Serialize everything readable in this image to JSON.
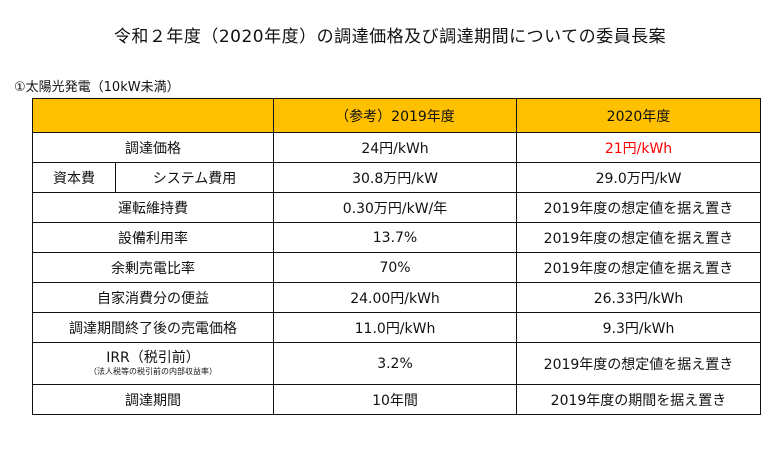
{
  "title": "令和２年度（2020年度）の調達価格及び調達期間についての委員長案",
  "subtitle": "①太陽光発電（10kW未満）",
  "table": {
    "header": {
      "blank": "",
      "col2019": "（参考）2019年度",
      "col2020": "2020年度"
    },
    "rows": {
      "price": {
        "label": "調達価格",
        "v2019": "24円/kWh",
        "v2020": "21円/kWh"
      },
      "capex": {
        "group": "資本費",
        "label": "システム費用",
        "v2019": "30.8万円/kW",
        "v2020": "29.0万円/kW"
      },
      "opex": {
        "label": "運転維持費",
        "v2019": "0.30万円/kW/年",
        "v2020": "2019年度の想定値を据え置き"
      },
      "capacity": {
        "label": "設備利用率",
        "v2019": "13.7%",
        "v2020": "2019年度の想定値を据え置き"
      },
      "surplus": {
        "label": "余剰売電比率",
        "v2019": "70%",
        "v2020": "2019年度の想定値を据え置き"
      },
      "selfuse": {
        "label": "自家消費分の便益",
        "v2019": "24.00円/kWh",
        "v2020": "26.33円/kWh"
      },
      "postperiod": {
        "label": "調達期間終了後の売電価格",
        "v2019": "11.0円/kWh",
        "v2020": "9.3円/kWh"
      },
      "irr": {
        "label": "IRR（税引前）",
        "note": "（法人税等の税引前の内部収益率）",
        "v2019": "3.2%",
        "v2020": "2019年度の想定値を据え置き"
      },
      "period": {
        "label": "調達期間",
        "v2019": "10年間",
        "v2020": "2019年度の期間を据え置き"
      }
    }
  },
  "colors": {
    "header_bg": "#ffc000",
    "highlight": "#ff0000"
  }
}
